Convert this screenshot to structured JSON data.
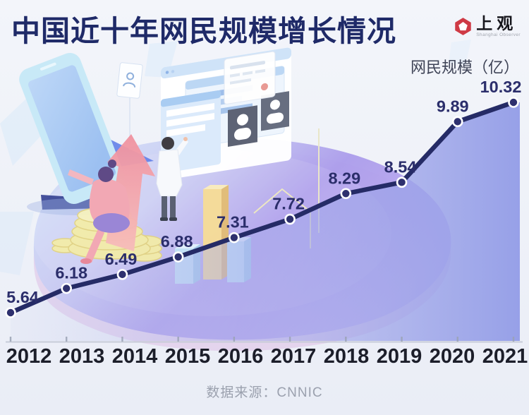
{
  "header": {
    "title": "中国近十年网民规模增长情况",
    "logo": {
      "name": "上观",
      "subtitle": "Shanghai Observer",
      "icon": "observer-knot-icon",
      "icon_color": "#cf3a45"
    }
  },
  "chart_data": {
    "type": "line",
    "title": "中国近十年网民规模增长情况",
    "unit_label": "网民规模（亿）",
    "series_name": "网民规模",
    "categories": [
      "2012",
      "2013",
      "2014",
      "2015",
      "2016",
      "2017",
      "2018",
      "2019",
      "2020",
      "2021"
    ],
    "values": [
      5.64,
      6.18,
      6.49,
      6.88,
      7.31,
      7.72,
      8.29,
      8.54,
      9.89,
      10.32
    ],
    "ylim": [
      5.2,
      10.8
    ],
    "xlabel": "",
    "ylabel": "网民规模（亿）",
    "grid": false,
    "legend_position": "none",
    "line_color": "#252b66",
    "dot_color": "#2e306e",
    "dot_ring_color": "#ffffff",
    "value_label_color": "#2b2e6b",
    "year_label_color": "#1c1e2a",
    "axis_color": "#c7cbd8",
    "tick_color": "#9aa2b4",
    "area_gradient": [
      "rgba(205,211,242,0.15)",
      "rgba(168,172,235,0.5)",
      "rgba(146,156,231,0.95)"
    ]
  },
  "footer": {
    "source": "数据来源：CNNIC"
  }
}
